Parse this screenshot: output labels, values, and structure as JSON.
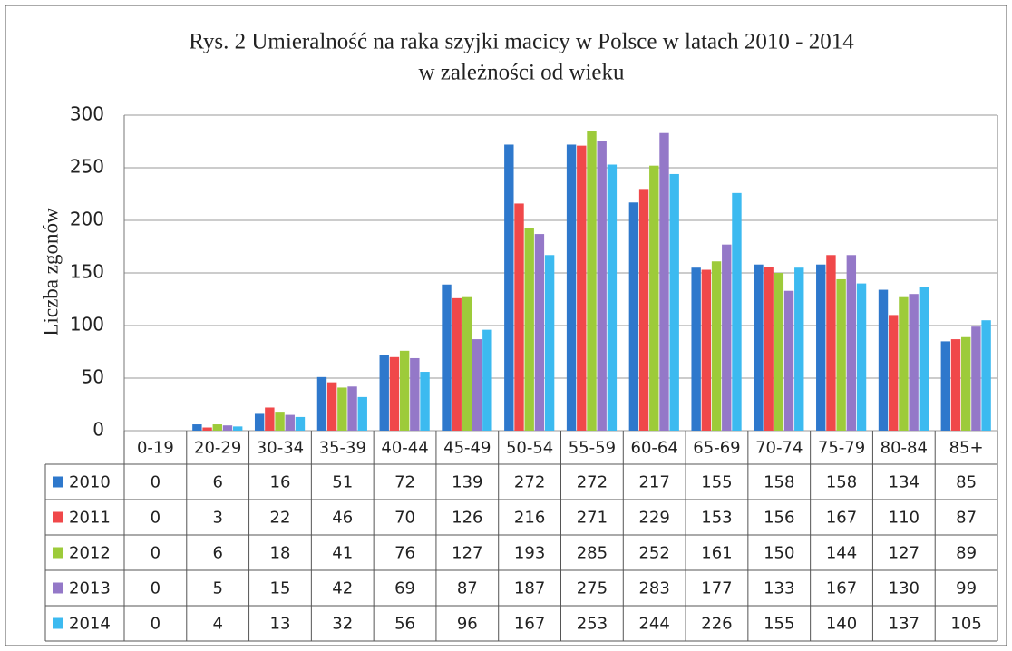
{
  "chart_data": {
    "type": "bar",
    "title": "Rys. 2 Umieralność na raka szyjki macicy w Polsce w latach 2010 - 2014",
    "subtitle": "w zależności od wieku",
    "y_label": "Liczba zgonów",
    "categories": [
      "0-19",
      "20-29",
      "30-34",
      "35-39",
      "40-44",
      "45-49",
      "50-54",
      "55-59",
      "60-64",
      "65-69",
      "70-74",
      "75-79",
      "80-84",
      "85+"
    ],
    "series": [
      {
        "name": "2010",
        "color": "#2e78cc",
        "values": [
          0,
          6,
          16,
          51,
          72,
          139,
          272,
          272,
          217,
          155,
          158,
          158,
          134,
          85
        ]
      },
      {
        "name": "2011",
        "color": "#f0484a",
        "values": [
          0,
          3,
          22,
          46,
          70,
          126,
          216,
          271,
          229,
          153,
          156,
          167,
          110,
          87
        ]
      },
      {
        "name": "2012",
        "color": "#9dcb3a",
        "values": [
          0,
          6,
          18,
          41,
          76,
          127,
          193,
          285,
          252,
          161,
          150,
          144,
          127,
          89
        ]
      },
      {
        "name": "2013",
        "color": "#9478c8",
        "values": [
          0,
          5,
          15,
          42,
          69,
          87,
          187,
          275,
          283,
          177,
          133,
          167,
          130,
          99
        ]
      },
      {
        "name": "2014",
        "color": "#3cbaf0",
        "values": [
          0,
          4,
          13,
          32,
          56,
          96,
          167,
          253,
          244,
          226,
          155,
          140,
          137,
          105
        ]
      }
    ],
    "ylim": [
      0,
      300
    ],
    "yticks": [
      0,
      50,
      100,
      150,
      200,
      250,
      300
    ],
    "grid": true
  }
}
